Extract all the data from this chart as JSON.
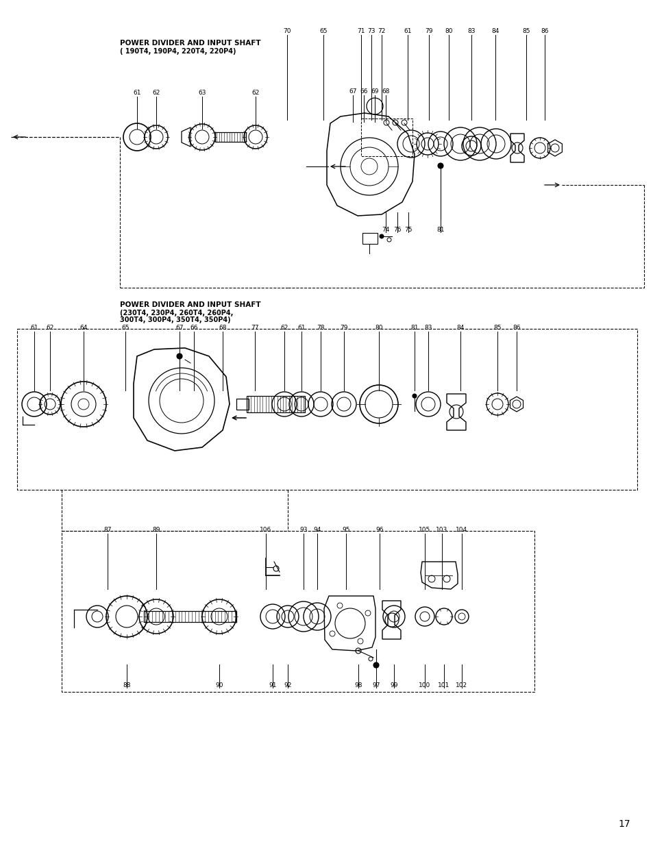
{
  "title1": "POWER DIVIDER AND INPUT SHAFT",
  "subtitle1": "( 190T4, 190P4, 220T4, 220P4)",
  "title2": "POWER DIVIDER AND INPUT SHAFT",
  "subtitle2a": "(230T4, 230P4, 260T4, 260P4,",
  "subtitle2b": "300T4, 300P4, 350T4, 350P4)",
  "page_number": "17",
  "bg": "#ffffff"
}
